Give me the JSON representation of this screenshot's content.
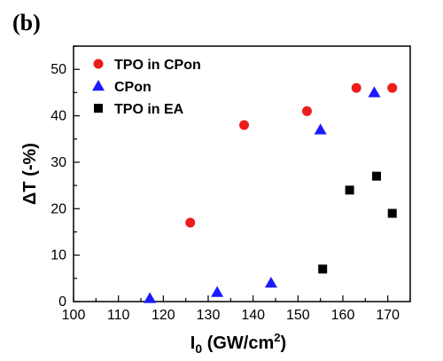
{
  "panel_label": "(b)",
  "chart_data": {
    "type": "scatter",
    "xlabel": {
      "main": "I",
      "sub": "0",
      "unit_pre": " (GW/cm",
      "sup": "2",
      "unit_post": ")"
    },
    "ylabel": "ΔT (-%)",
    "xlim": [
      100,
      175
    ],
    "ylim": [
      0,
      55
    ],
    "xticks": [
      100,
      110,
      120,
      130,
      140,
      150,
      160,
      170
    ],
    "yticks": [
      0,
      10,
      20,
      30,
      40,
      50
    ],
    "grid": false,
    "legend_position": "top-left",
    "series": [
      {
        "name": "TPO in CPon",
        "marker": "circle",
        "color": "#ee1c1c",
        "x": [
          126,
          138,
          152,
          163,
          171
        ],
        "y": [
          17,
          38,
          41,
          46,
          46
        ]
      },
      {
        "name": "CPon",
        "marker": "triangle",
        "color": "#1a1aff",
        "x": [
          117,
          132,
          144,
          155,
          167
        ],
        "y": [
          0.7,
          2,
          4,
          37,
          45
        ]
      },
      {
        "name": "TPO in EA",
        "marker": "square",
        "color": "#000000",
        "x": [
          155.5,
          161.5,
          167.5,
          171
        ],
        "y": [
          7,
          24,
          27,
          19
        ]
      }
    ]
  }
}
